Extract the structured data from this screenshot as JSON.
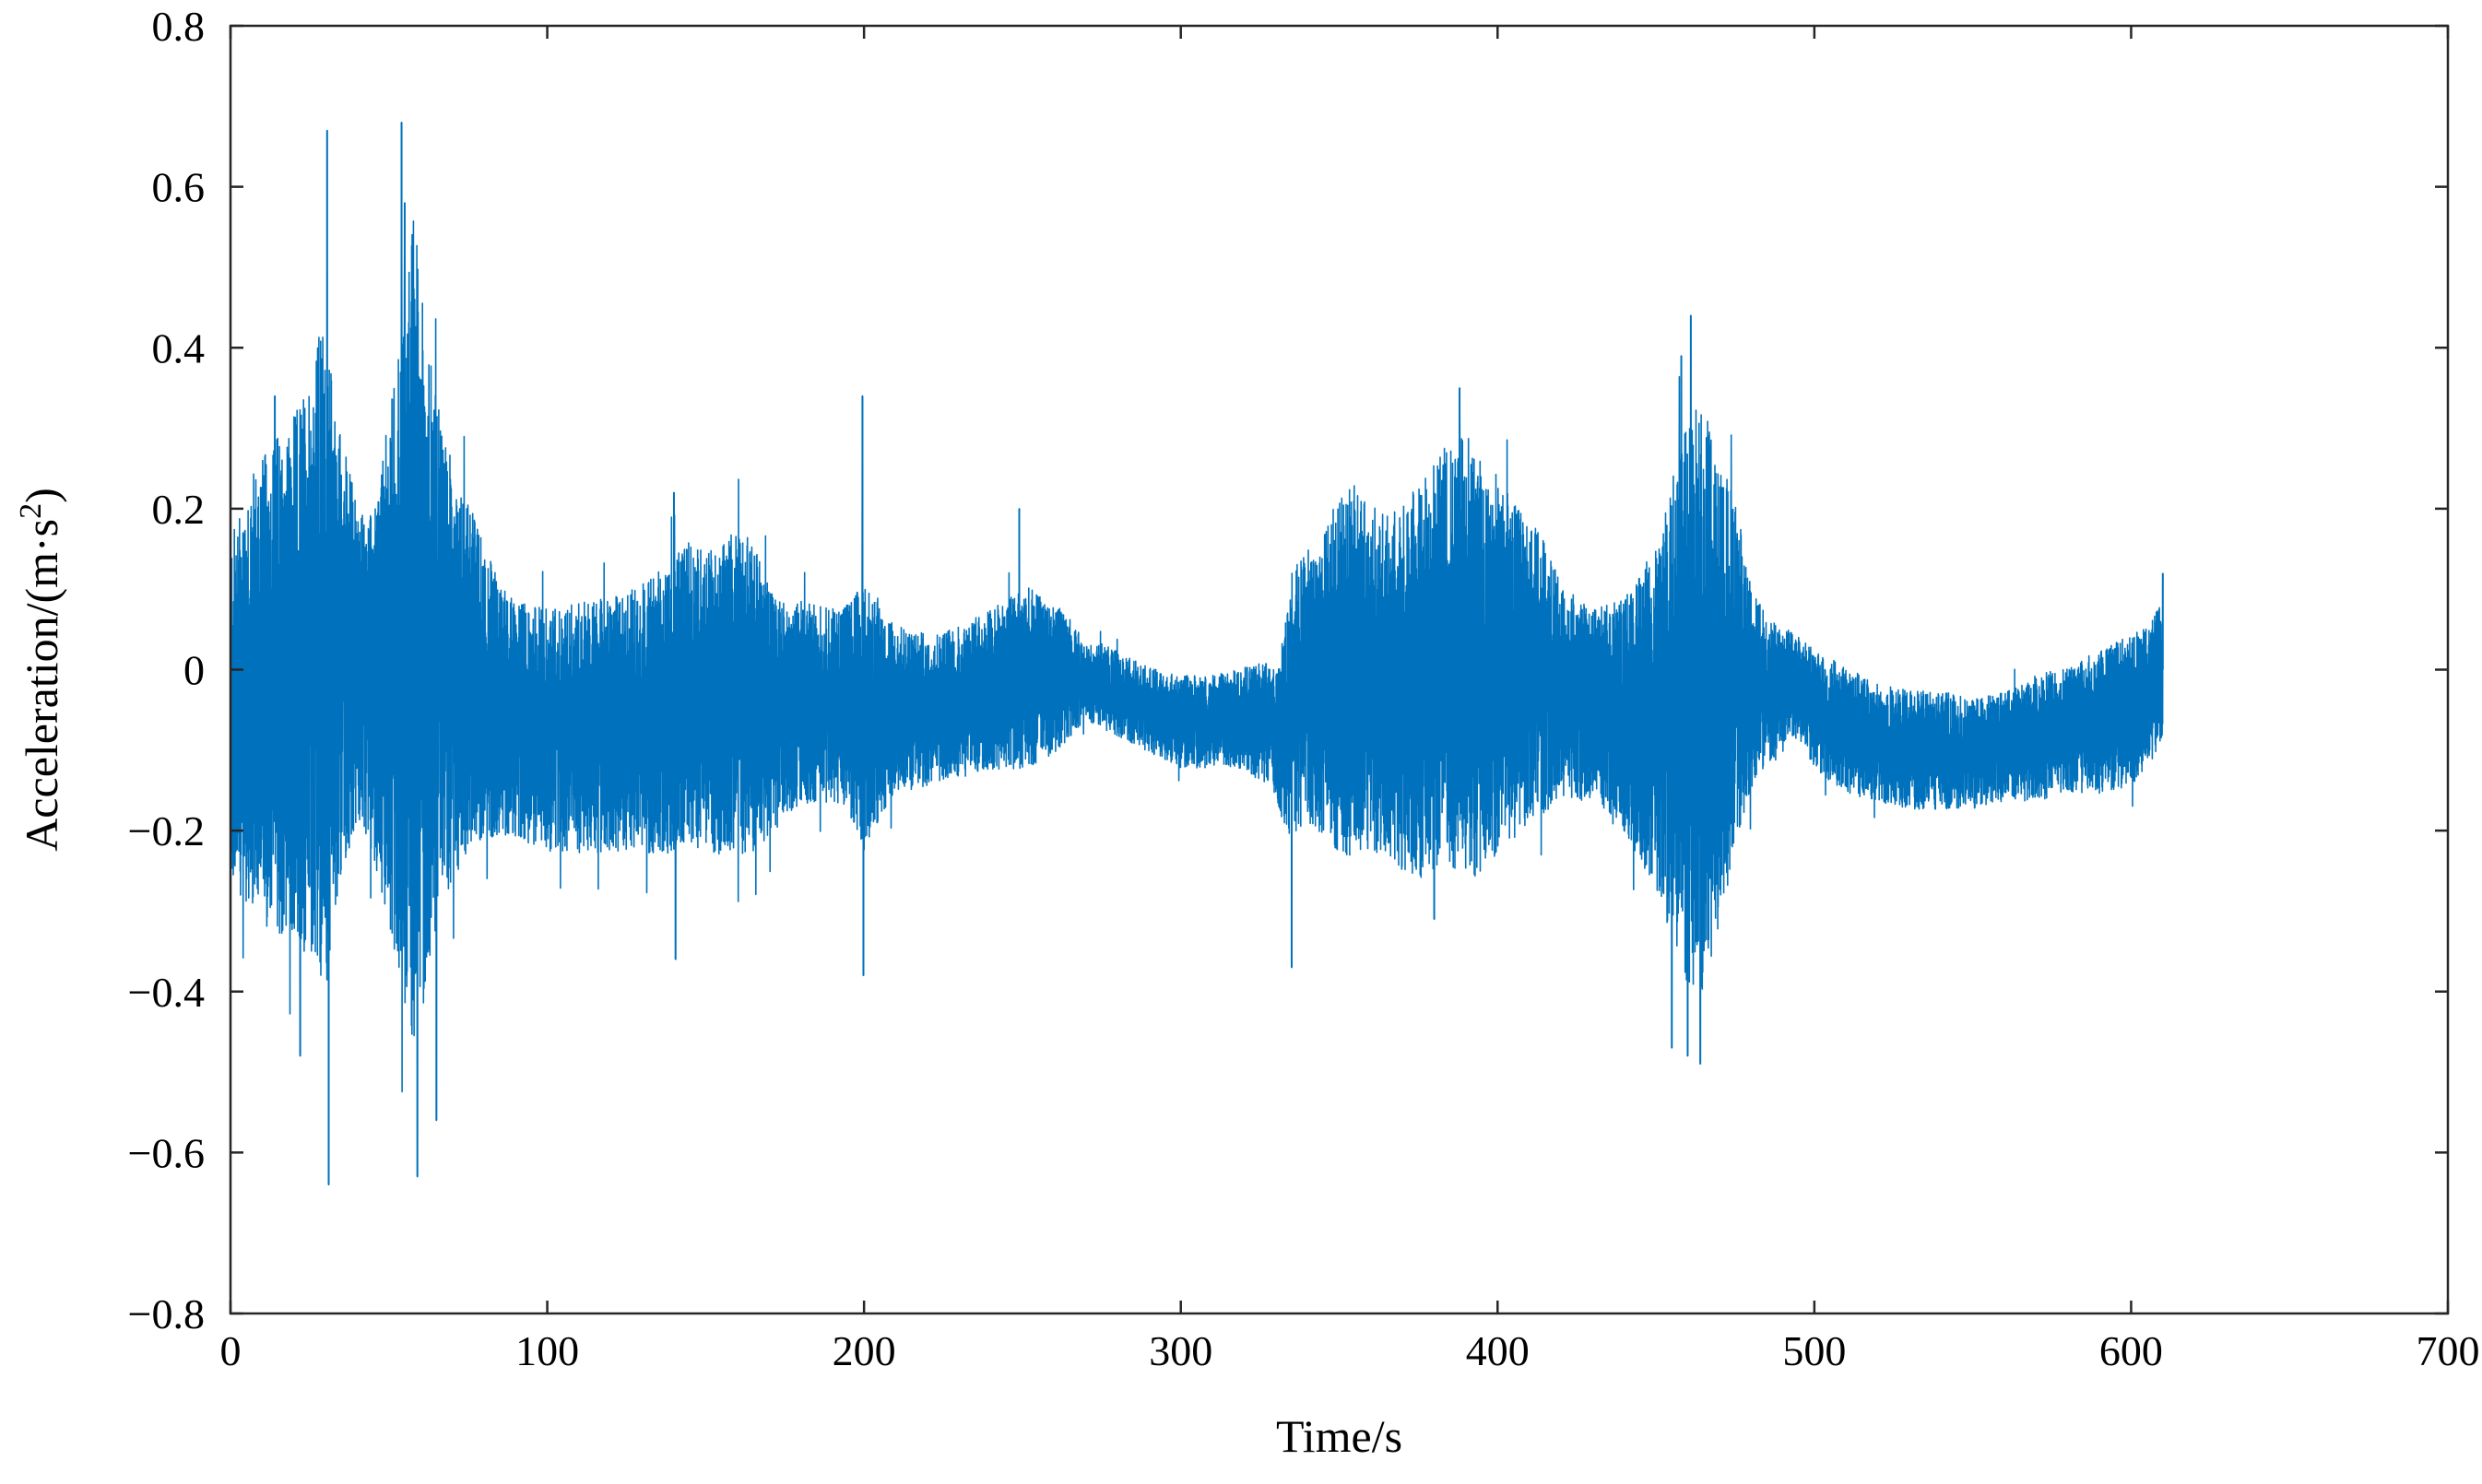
{
  "chart_data": {
    "type": "line",
    "title": "",
    "xlabel": "Time/s",
    "ylabel_parts": {
      "main": "Acceleration/(m·s",
      "sup": "2",
      "end": ")"
    },
    "xlim": [
      0,
      700
    ],
    "ylim": [
      -0.8,
      0.8
    ],
    "xticks": [
      0,
      100,
      200,
      300,
      400,
      500,
      600,
      700
    ],
    "yticks": [
      -0.8,
      -0.6,
      -0.4,
      -0.2,
      0,
      0.2,
      0.4,
      0.6,
      0.8
    ],
    "xtick_labels": [
      "0",
      "100",
      "200",
      "300",
      "400",
      "500",
      "600",
      "700"
    ],
    "ytick_labels": [
      "−0.8",
      "−0.6",
      "−0.4",
      "−0.2",
      "0",
      "0.2",
      "0.4",
      "0.6",
      "0.8"
    ],
    "grid": false,
    "legend": "none",
    "series": [
      {
        "color": "#0072BD",
        "x_range": [
          0,
          610
        ],
        "mean_offset": -0.03,
        "envelope_x": [
          0,
          5,
          10,
          15,
          20,
          25,
          28,
          30,
          32,
          35,
          40,
          45,
          50,
          55,
          58,
          62,
          65,
          70,
          75,
          80,
          85,
          90,
          100,
          110,
          120,
          130,
          135,
          140,
          145,
          150,
          155,
          160,
          165,
          170,
          175,
          180,
          190,
          195,
          200,
          205,
          210,
          220,
          230,
          240,
          248,
          250,
          255,
          260,
          265,
          270,
          275,
          280,
          290,
          300,
          310,
          320,
          330,
          333,
          335,
          340,
          345,
          350,
          355,
          360,
          365,
          370,
          375,
          380,
          385,
          390,
          395,
          400,
          405,
          410,
          415,
          420,
          430,
          440,
          450,
          455,
          460,
          465,
          470,
          475,
          480,
          485,
          490,
          495,
          500,
          510,
          520,
          530,
          540,
          550,
          560,
          570,
          580,
          590,
          600,
          605,
          610
        ],
        "envelope_upper": [
          0.15,
          0.22,
          0.25,
          0.28,
          0.3,
          0.35,
          0.4,
          0.42,
          0.35,
          0.28,
          0.2,
          0.18,
          0.3,
          0.45,
          0.55,
          0.4,
          0.32,
          0.25,
          0.2,
          0.15,
          0.1,
          0.08,
          0.07,
          0.08,
          0.08,
          0.1,
          0.12,
          0.13,
          0.15,
          0.14,
          0.15,
          0.17,
          0.15,
          0.1,
          0.08,
          0.08,
          0.07,
          0.08,
          0.1,
          0.08,
          0.05,
          0.04,
          0.05,
          0.07,
          0.09,
          0.1,
          0.09,
          0.08,
          0.06,
          0.03,
          0.03,
          0.02,
          0.0,
          -0.01,
          -0.01,
          0.0,
          0.01,
          0.05,
          0.12,
          0.15,
          0.18,
          0.2,
          0.22,
          0.2,
          0.18,
          0.2,
          0.22,
          0.25,
          0.27,
          0.28,
          0.26,
          0.23,
          0.2,
          0.18,
          0.15,
          0.1,
          0.07,
          0.08,
          0.15,
          0.22,
          0.3,
          0.32,
          0.25,
          0.2,
          0.1,
          0.06,
          0.05,
          0.04,
          0.02,
          0.0,
          -0.02,
          -0.03,
          -0.03,
          -0.04,
          -0.03,
          -0.01,
          0.0,
          0.02,
          0.04,
          0.05,
          0.08
        ],
        "envelope_lower": [
          -0.25,
          -0.28,
          -0.3,
          -0.32,
          -0.32,
          -0.35,
          -0.38,
          -0.38,
          -0.32,
          -0.25,
          -0.18,
          -0.22,
          -0.3,
          -0.4,
          -0.45,
          -0.38,
          -0.3,
          -0.25,
          -0.22,
          -0.2,
          -0.2,
          -0.2,
          -0.22,
          -0.22,
          -0.22,
          -0.22,
          -0.22,
          -0.22,
          -0.22,
          -0.22,
          -0.22,
          -0.22,
          -0.22,
          -0.2,
          -0.18,
          -0.16,
          -0.16,
          -0.17,
          -0.22,
          -0.18,
          -0.15,
          -0.14,
          -0.13,
          -0.12,
          -0.12,
          -0.12,
          -0.11,
          -0.1,
          -0.08,
          -0.06,
          -0.07,
          -0.08,
          -0.1,
          -0.12,
          -0.12,
          -0.12,
          -0.15,
          -0.2,
          -0.2,
          -0.18,
          -0.2,
          -0.22,
          -0.22,
          -0.22,
          -0.22,
          -0.24,
          -0.25,
          -0.25,
          -0.25,
          -0.25,
          -0.24,
          -0.22,
          -0.2,
          -0.18,
          -0.17,
          -0.15,
          -0.16,
          -0.2,
          -0.26,
          -0.32,
          -0.38,
          -0.38,
          -0.3,
          -0.22,
          -0.15,
          -0.12,
          -0.1,
          -0.08,
          -0.12,
          -0.15,
          -0.16,
          -0.17,
          -0.17,
          -0.17,
          -0.16,
          -0.16,
          -0.15,
          -0.15,
          -0.14,
          -0.12,
          -0.08
        ],
        "spikes": [
          {
            "x": 30.5,
            "y": 0.67
          },
          {
            "x": 31.0,
            "y": -0.64
          },
          {
            "x": 54.0,
            "y": 0.68
          },
          {
            "x": 55.0,
            "y": 0.58
          },
          {
            "x": 59.0,
            "y": -0.63
          },
          {
            "x": 65.0,
            "y": -0.56
          },
          {
            "x": 22.0,
            "y": -0.48
          },
          {
            "x": 14.0,
            "y": 0.34
          },
          {
            "x": 199.5,
            "y": 0.34
          },
          {
            "x": 199.8,
            "y": -0.38
          },
          {
            "x": 140.0,
            "y": 0.22
          },
          {
            "x": 140.5,
            "y": -0.36
          },
          {
            "x": 249.0,
            "y": 0.2
          },
          {
            "x": 335.0,
            "y": -0.37
          },
          {
            "x": 388.0,
            "y": 0.35
          },
          {
            "x": 380.0,
            "y": -0.31
          },
          {
            "x": 461.0,
            "y": 0.44
          },
          {
            "x": 458.0,
            "y": 0.39
          },
          {
            "x": 460.0,
            "y": -0.48
          },
          {
            "x": 464.0,
            "y": -0.49
          },
          {
            "x": 455.0,
            "y": -0.47
          },
          {
            "x": 610.0,
            "y": 0.12
          }
        ]
      }
    ]
  }
}
